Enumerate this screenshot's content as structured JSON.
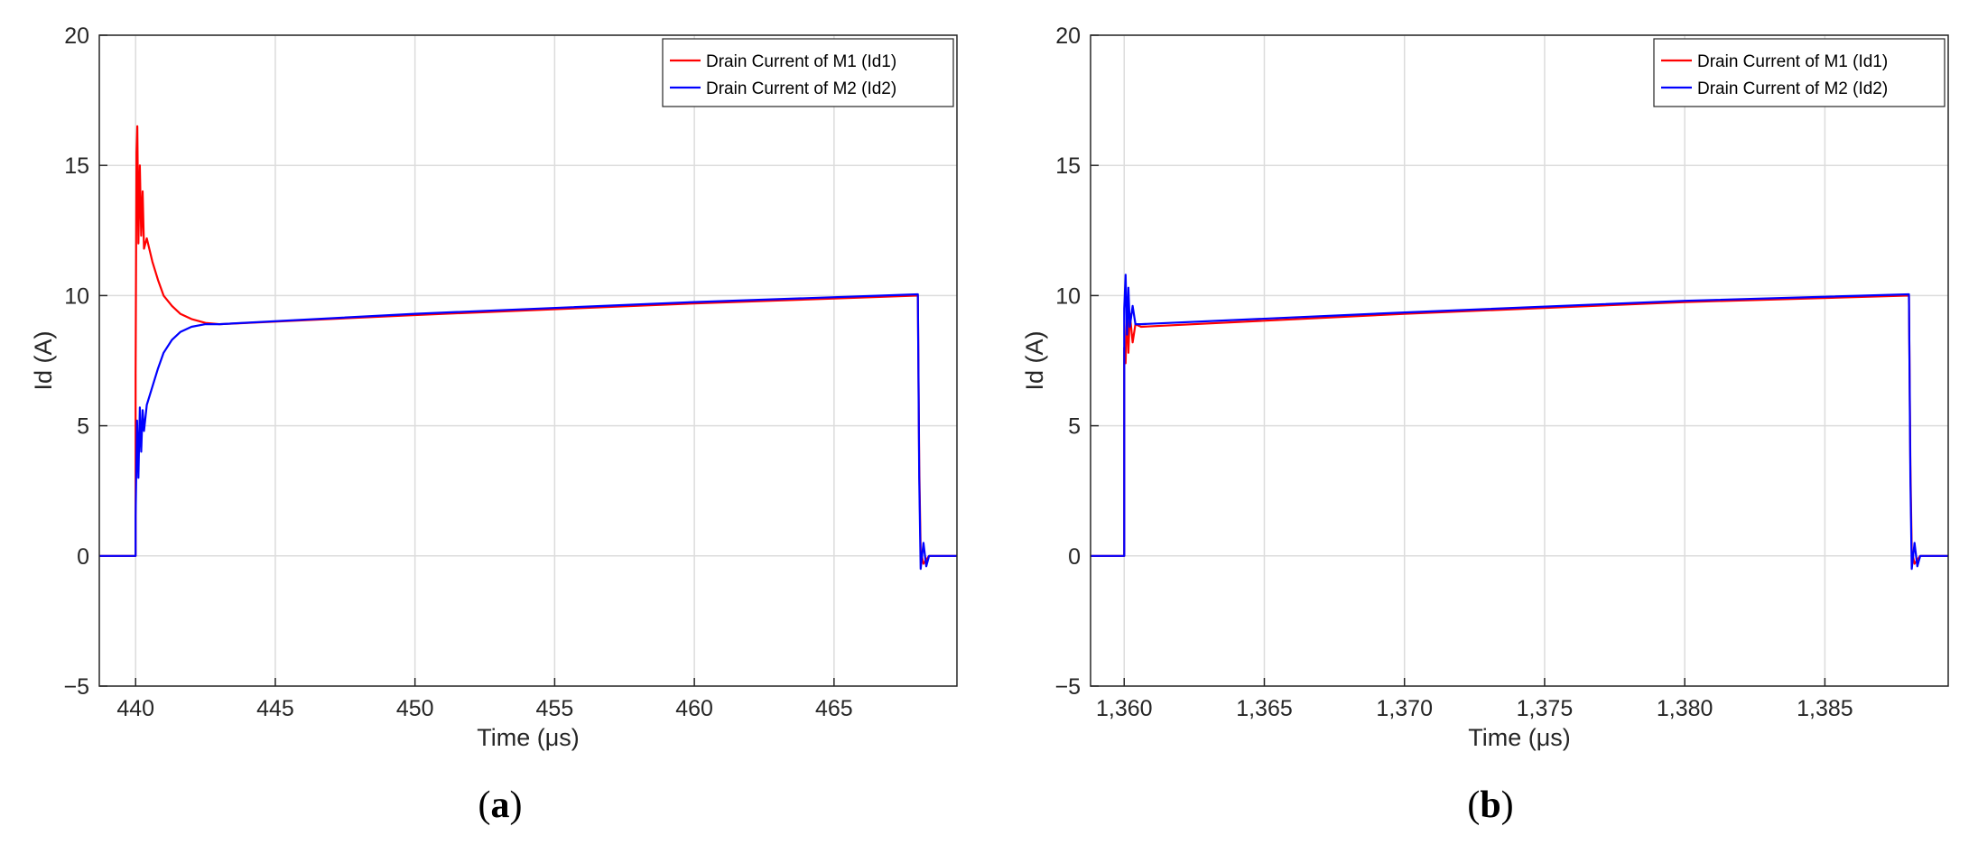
{
  "chart_data": [
    {
      "type": "line",
      "panel": "a",
      "caption": {
        "open": "(",
        "letter": "a",
        "close": ")"
      },
      "xlabel": "Time (μs)",
      "ylabel": "Id (A)",
      "xlim": [
        438.7,
        469.4
      ],
      "ylim": [
        -5,
        20
      ],
      "xticks": [
        440,
        445,
        450,
        455,
        460,
        465
      ],
      "xtick_labels": [
        "440",
        "445",
        "450",
        "455",
        "460",
        "465"
      ],
      "yticks": [
        -5,
        0,
        5,
        10,
        15,
        20
      ],
      "ytick_labels": [
        "−5",
        "0",
        "5",
        "10",
        "15",
        "20"
      ],
      "grid": true,
      "legend_position": "top-right",
      "series": [
        {
          "name": "Drain Current of M1 (Id1)",
          "color": "#ff0000",
          "x": [
            438.7,
            440.0,
            440.0,
            440.03,
            440.06,
            440.1,
            440.15,
            440.2,
            440.25,
            440.3,
            440.4,
            440.6,
            440.8,
            441.0,
            441.3,
            441.6,
            442.0,
            442.5,
            443.0,
            450.0,
            460.0,
            468.0,
            468.05,
            468.1,
            468.2,
            468.4,
            469.4
          ],
          "y": [
            0,
            0,
            7,
            15.5,
            16.5,
            12.0,
            15.0,
            12.3,
            14.0,
            11.8,
            12.2,
            11.3,
            10.6,
            10.0,
            9.6,
            9.3,
            9.1,
            8.95,
            8.9,
            9.25,
            9.7,
            10.0,
            3.5,
            0.2,
            -0.3,
            0,
            0
          ]
        },
        {
          "name": "Drain Current of M2 (Id2)",
          "color": "#0000ff",
          "x": [
            438.7,
            440.0,
            440.0,
            440.05,
            440.1,
            440.15,
            440.2,
            440.25,
            440.3,
            440.4,
            440.6,
            440.8,
            441.0,
            441.3,
            441.6,
            442.0,
            442.5,
            443.0,
            450.0,
            460.0,
            468.0,
            468.05,
            468.1,
            468.2,
            468.3,
            468.4,
            469.4
          ],
          "y": [
            0,
            0,
            1.5,
            5.2,
            3.0,
            5.7,
            4.0,
            5.6,
            4.8,
            5.8,
            6.5,
            7.2,
            7.8,
            8.3,
            8.6,
            8.8,
            8.9,
            8.9,
            9.3,
            9.75,
            10.05,
            3.0,
            -0.5,
            0.5,
            -0.4,
            0,
            0
          ]
        }
      ]
    },
    {
      "type": "line",
      "panel": "b",
      "caption": {
        "open": "(",
        "letter": "b",
        "close": ")"
      },
      "xlabel": "Time (μs)",
      "ylabel": "Id (A)",
      "xlim": [
        1358.8,
        1389.4
      ],
      "ylim": [
        -5,
        20
      ],
      "xticks": [
        1360,
        1365,
        1370,
        1375,
        1380,
        1385
      ],
      "xtick_labels": [
        "1,360",
        "1,365",
        "1,370",
        "1,375",
        "1,380",
        "1,385"
      ],
      "yticks": [
        -5,
        0,
        5,
        10,
        15,
        20
      ],
      "ytick_labels": [
        "−5",
        "0",
        "5",
        "10",
        "15",
        "20"
      ],
      "grid": true,
      "legend_position": "top-right",
      "series": [
        {
          "name": "Drain Current of M1 (Id1)",
          "color": "#ff0000",
          "x": [
            1358.8,
            1360.0,
            1360.0,
            1360.05,
            1360.1,
            1360.15,
            1360.2,
            1360.3,
            1360.4,
            1360.6,
            1370.0,
            1380.0,
            1388.0,
            1388.05,
            1388.1,
            1388.2,
            1388.4,
            1389.4
          ],
          "y": [
            0,
            0,
            8.0,
            7.4,
            9.6,
            7.8,
            9.3,
            8.2,
            8.9,
            8.8,
            9.3,
            9.75,
            10.0,
            3.5,
            0.2,
            -0.3,
            0,
            0
          ]
        },
        {
          "name": "Drain Current of M2 (Id2)",
          "color": "#0000ff",
          "x": [
            1358.8,
            1360.0,
            1360.0,
            1360.05,
            1360.1,
            1360.15,
            1360.2,
            1360.3,
            1360.4,
            1360.6,
            1370.0,
            1380.0,
            1388.0,
            1388.05,
            1388.1,
            1388.2,
            1388.3,
            1388.4,
            1389.4
          ],
          "y": [
            0,
            0,
            9.5,
            10.8,
            8.5,
            10.3,
            8.8,
            9.6,
            8.9,
            8.9,
            9.35,
            9.8,
            10.05,
            3.0,
            -0.5,
            0.5,
            -0.4,
            0,
            0
          ]
        }
      ]
    }
  ]
}
